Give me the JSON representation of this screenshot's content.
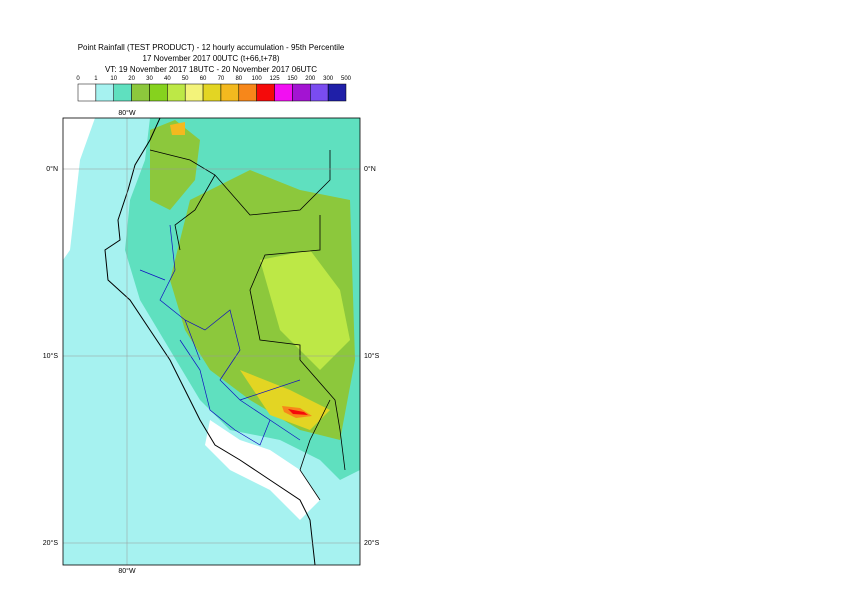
{
  "header": {
    "title": "Point Rainfall (TEST PRODUCT) - 12 hourly accumulation - 95th Percentile",
    "run": "17 November 2017 00UTC (t+66,t+78)",
    "valid": "VT: 19 November 2017 18UTC - 20 November 2017 06UTC"
  },
  "legend": {
    "labels": [
      0,
      1,
      10,
      20,
      30,
      40,
      50,
      60,
      70,
      80,
      100,
      125,
      150,
      200,
      300,
      500
    ],
    "colors": [
      "#ffffff",
      "#a6f2f0",
      "#5fe0bf",
      "#8cc83c",
      "#86d21e",
      "#bde846",
      "#f3f37a",
      "#e3d523",
      "#f3b91f",
      "#f7871a",
      "#f50a0a",
      "#f20ff2",
      "#a314d2",
      "#7a4cf0",
      "#1f1fa8",
      "#0d0d5a"
    ]
  },
  "map": {
    "lon_labels": [
      "80°W"
    ],
    "lat_labels": [
      "0°N",
      "10°S",
      "20°S"
    ]
  }
}
